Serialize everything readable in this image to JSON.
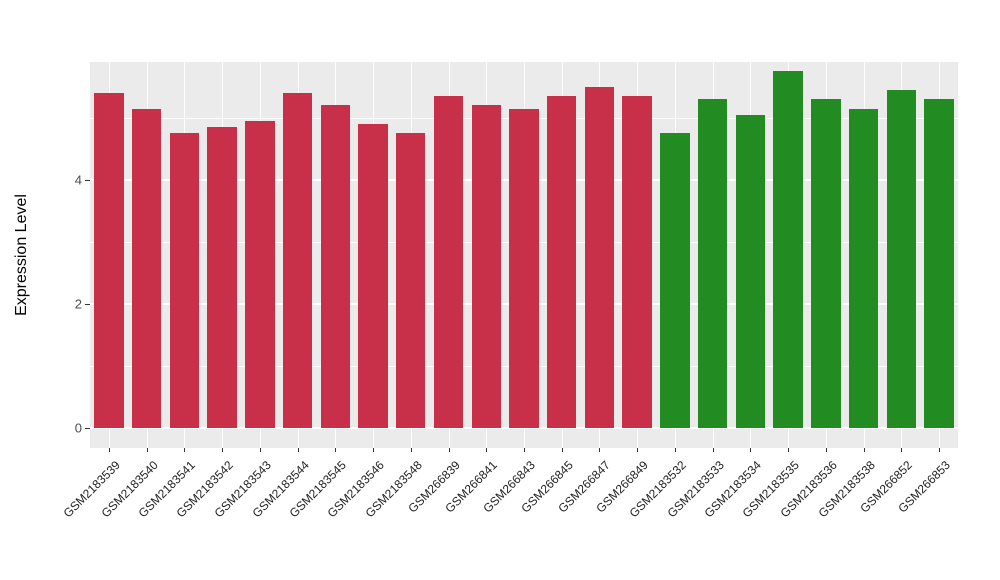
{
  "chart_data": {
    "type": "bar",
    "title": "",
    "xlabel": "",
    "ylabel": "Expression Level",
    "ylim": [
      0,
      5.9
    ],
    "yticks": [
      0,
      2,
      4
    ],
    "yticks_minor": [
      1,
      3,
      5
    ],
    "grid": true,
    "legend": false,
    "panel_background": "#EBEBEB",
    "gridline_color": "#ffffff",
    "group_colors": {
      "red": "#C8304A",
      "green": "#228B22"
    },
    "bars": [
      {
        "label": "GSM2183539",
        "value": 5.4,
        "group": "red"
      },
      {
        "label": "GSM2183540",
        "value": 5.15,
        "group": "red"
      },
      {
        "label": "GSM2183541",
        "value": 4.75,
        "group": "red"
      },
      {
        "label": "GSM2183542",
        "value": 4.85,
        "group": "red"
      },
      {
        "label": "GSM2183543",
        "value": 4.95,
        "group": "red"
      },
      {
        "label": "GSM2183544",
        "value": 5.4,
        "group": "red"
      },
      {
        "label": "GSM2183545",
        "value": 5.2,
        "group": "red"
      },
      {
        "label": "GSM2183546",
        "value": 4.9,
        "group": "red"
      },
      {
        "label": "GSM2183548",
        "value": 4.75,
        "group": "red"
      },
      {
        "label": "GSM266839",
        "value": 5.35,
        "group": "red"
      },
      {
        "label": "GSM266841",
        "value": 5.2,
        "group": "red"
      },
      {
        "label": "GSM266843",
        "value": 5.15,
        "group": "red"
      },
      {
        "label": "GSM266845",
        "value": 5.35,
        "group": "red"
      },
      {
        "label": "GSM266847",
        "value": 5.5,
        "group": "red"
      },
      {
        "label": "GSM266849",
        "value": 5.35,
        "group": "red"
      },
      {
        "label": "GSM2183532",
        "value": 4.75,
        "group": "green"
      },
      {
        "label": "GSM2183533",
        "value": 5.3,
        "group": "green"
      },
      {
        "label": "GSM2183534",
        "value": 5.05,
        "group": "green"
      },
      {
        "label": "GSM2183535",
        "value": 5.75,
        "group": "green"
      },
      {
        "label": "GSM2183536",
        "value": 5.3,
        "group": "green"
      },
      {
        "label": "GSM2183538",
        "value": 5.15,
        "group": "green"
      },
      {
        "label": "GSM266852",
        "value": 5.45,
        "group": "green"
      },
      {
        "label": "GSM266853",
        "value": 5.3,
        "group": "green"
      }
    ]
  }
}
